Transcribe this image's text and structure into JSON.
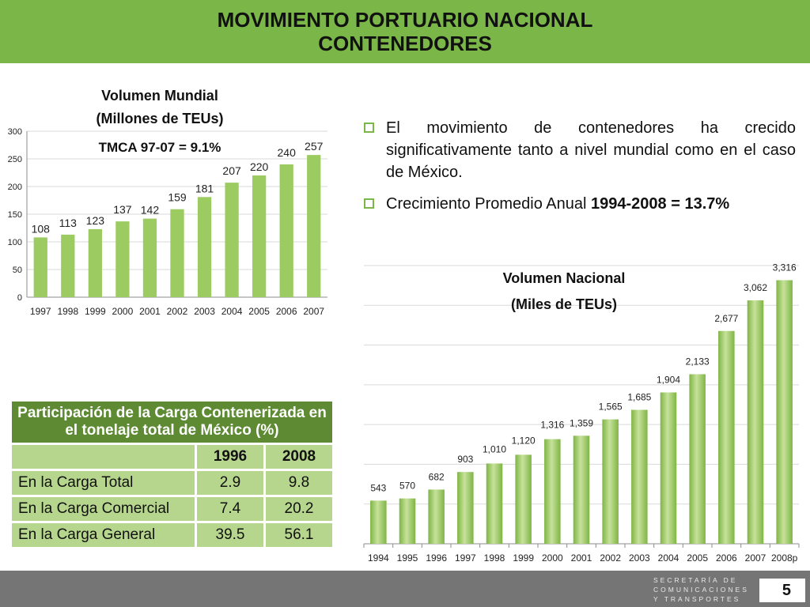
{
  "header": {
    "title_line1": "MOVIMIENTO PORTUARIO NACIONAL",
    "title_line2": "CONTENEDORES"
  },
  "bullets": [
    {
      "text": "El movimiento de contenedores ha crecido significativamente tanto a nivel mundial como en el caso de México."
    },
    {
      "text_prefix": "Crecimiento Promedio Anual ",
      "text_bold": "1994-2008 = 13.7%"
    }
  ],
  "colors": {
    "header_bg": "#7ab648",
    "bar_green": "#9ccb62",
    "table_header": "#5d8a33",
    "table_cell": "#b7d68d",
    "footer_bg": "#757575"
  },
  "chart_data": [
    {
      "type": "bar",
      "title": "Volumen Mundial",
      "subtitle": "(Millones de TEUs)",
      "annotation": "TMCA 97-07 = 9.1%",
      "categories": [
        "1997",
        "1998",
        "1999",
        "2000",
        "2001",
        "2002",
        "2003",
        "2004",
        "2005",
        "2006",
        "2007"
      ],
      "values": [
        108,
        113,
        123,
        137,
        142,
        159,
        181,
        207,
        220,
        240,
        257
      ],
      "data_labels": [
        "108",
        "113",
        "123",
        "137",
        "142",
        "159",
        "181",
        "207",
        "220",
        "240",
        "257"
      ],
      "yticks": [
        "0",
        "50",
        "100",
        "150",
        "200",
        "250",
        "300"
      ],
      "ylim": [
        0,
        300
      ],
      "grid": true
    },
    {
      "type": "bar",
      "title": "Volumen Nacional",
      "subtitle": "(Miles de TEUs)",
      "categories": [
        "1994",
        "1995",
        "1996",
        "1997",
        "1998",
        "1999",
        "2000",
        "2001",
        "2002",
        "2003",
        "2004",
        "2005",
        "2006",
        "2007",
        "2008p"
      ],
      "values": [
        543,
        570,
        682,
        903,
        1010,
        1120,
        1316,
        1359,
        1565,
        1685,
        1904,
        2133,
        2677,
        3062,
        3316
      ],
      "data_labels": [
        "543",
        "570",
        "682",
        "903",
        "1,010",
        "1,120",
        "1,316",
        "1,359",
        "1,565",
        "1,685",
        "1,904",
        "2,133",
        "2,677",
        "3,062",
        "3,316"
      ],
      "ylim": [
        0,
        3500
      ],
      "grid": true
    }
  ],
  "table": {
    "caption": "Participación de la Carga Contenerizada en el tonelaje total de México (%)",
    "years": [
      "1996",
      "2008"
    ],
    "rows": [
      {
        "label": "En la Carga Total",
        "v1996": "2.9",
        "v2008": "9.8"
      },
      {
        "label": "En la Carga Comercial",
        "v1996": "7.4",
        "v2008": "20.2"
      },
      {
        "label": "En la Carga General",
        "v1996": "39.5",
        "v2008": "56.1"
      }
    ]
  },
  "footer": {
    "logo_line1": "SECRETARÍA DE",
    "logo_line2": "COMUNICACIONES",
    "logo_line3": "Y TRANSPORTES",
    "page_number": "5"
  }
}
